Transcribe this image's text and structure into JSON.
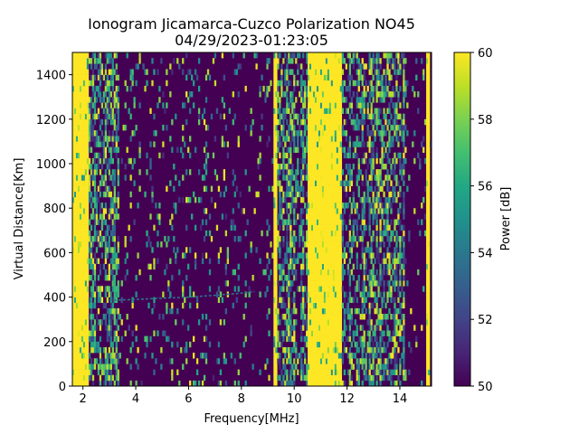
{
  "chart_data": {
    "type": "heatmap",
    "title": "Ionogram Jicamarca-Cuzco Polarization NO45",
    "subtitle": "04/29/2023-01:23:05",
    "xlabel": "Frequency[MHz]",
    "ylabel": "Virtual Distance[Km]",
    "xlim": [
      1.6,
      15.2
    ],
    "ylim": [
      0,
      1500
    ],
    "x_ticks": [
      "2",
      "4",
      "6",
      "8",
      "10",
      "12",
      "14"
    ],
    "x_tick_values": [
      2,
      4,
      6,
      8,
      10,
      12,
      14
    ],
    "y_ticks": [
      "0",
      "200",
      "400",
      "600",
      "800",
      "1000",
      "1200",
      "1400"
    ],
    "y_tick_values": [
      0,
      200,
      400,
      600,
      800,
      1000,
      1200,
      1400
    ],
    "colorbar": {
      "label": "Power [dB]",
      "min": 50,
      "max": 60,
      "ticks": [
        "50",
        "52",
        "54",
        "56",
        "58",
        "60"
      ],
      "tick_values": [
        50,
        52,
        54,
        56,
        58,
        60
      ],
      "colormap": "viridis"
    },
    "features": {
      "background_power_db": 50,
      "saturated_power_db": 60,
      "saturated_bands_mhz": [
        [
          1.6,
          2.2
        ],
        [
          9.2,
          9.35
        ],
        [
          10.5,
          11.8
        ],
        [
          15.0,
          15.1
        ]
      ],
      "noisy_bands_mhz": [
        [
          2.2,
          3.4
        ],
        [
          9.35,
          10.5
        ],
        [
          11.8,
          14.2
        ]
      ],
      "echo_trace": {
        "x_mhz": [
          3.0,
          4.0,
          5.0,
          6.0,
          7.0,
          8.0,
          8.5
        ],
        "y_km": [
          385,
          390,
          395,
          400,
          408,
          418,
          425
        ]
      }
    }
  }
}
